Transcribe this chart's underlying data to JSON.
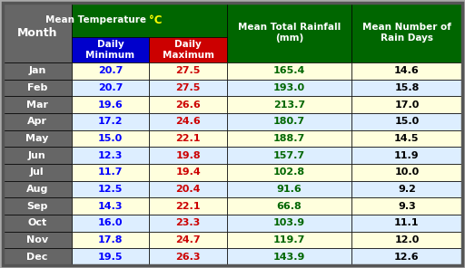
{
  "months": [
    "Jan",
    "Feb",
    "Mar",
    "Apr",
    "May",
    "Jun",
    "Jul",
    "Aug",
    "Sep",
    "Oct",
    "Nov",
    "Dec"
  ],
  "daily_min": [
    20.7,
    20.7,
    19.6,
    17.2,
    15.0,
    12.3,
    11.7,
    12.5,
    14.3,
    16.0,
    17.8,
    19.5
  ],
  "daily_max": [
    27.5,
    27.5,
    26.6,
    24.6,
    22.1,
    19.8,
    19.4,
    20.4,
    22.1,
    23.3,
    24.7,
    26.3
  ],
  "rainfall": [
    165.4,
    193.0,
    213.7,
    180.7,
    188.7,
    157.7,
    102.8,
    91.6,
    66.8,
    103.9,
    119.7,
    143.9
  ],
  "rain_days": [
    14.6,
    15.8,
    17.0,
    15.0,
    14.5,
    11.9,
    10.0,
    9.2,
    9.3,
    11.1,
    12.0,
    12.6
  ],
  "header_bg": "#006600",
  "header_text_color": "#ffffff",
  "min_col_bg": "#0000cc",
  "max_col_bg": "#cc0000",
  "subheader_text": "#ffffff",
  "month_col_bg": "#666666",
  "month_text_color": "#ffffff",
  "row_bg_odd": "#ffffdd",
  "row_bg_even": "#ddeeff",
  "min_val_color": "#0000ff",
  "max_val_color": "#cc0000",
  "rainfall_val_color": "#006600",
  "rain_days_val_color": "#000000",
  "border_color": "#000000",
  "outer_border_color": "#555555",
  "superscript_o_color": "#ffff00",
  "col_widths_raw": [
    62,
    70,
    70,
    112,
    100
  ]
}
